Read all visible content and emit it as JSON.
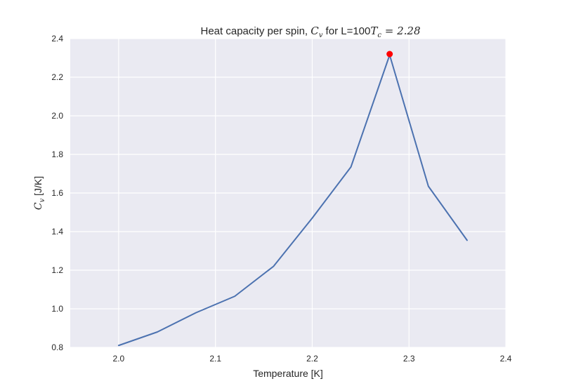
{
  "chart_data": {
    "type": "line",
    "title_parts": {
      "prefix": "Heat capacity per spin, ",
      "cv_symbol": "C",
      "cv_subscript": "v",
      "middle": " for L=100",
      "tc_symbol": "T",
      "tc_subscript": "c",
      "tc_value": " = 2.28"
    },
    "xlabel": "Temperature [K]",
    "ylabel_parts": {
      "symbol": "C",
      "subscript": "v",
      "unit": " [J/K]"
    },
    "xlim": [
      1.95,
      2.4
    ],
    "ylim": [
      0.8,
      2.4
    ],
    "xticks": [
      "2.0",
      "2.1",
      "2.2",
      "2.3",
      "2.4"
    ],
    "yticks": [
      "0.8",
      "1.0",
      "1.2",
      "1.4",
      "1.6",
      "1.8",
      "2.0",
      "2.2",
      "2.4"
    ],
    "grid": true,
    "series": [
      {
        "x": [
          2.0,
          2.04,
          2.08,
          2.12,
          2.16,
          2.2,
          2.24,
          2.28,
          2.32,
          2.36
        ],
        "y": [
          0.81,
          0.88,
          0.98,
          1.065,
          1.22,
          1.47,
          1.735,
          2.315,
          1.635,
          1.355
        ],
        "color": "#4c72b0"
      }
    ],
    "highlight_point": {
      "x": 2.28,
      "y": 2.32,
      "color": "#ff0000"
    },
    "colors": {
      "plot_background": "#eaeaf2",
      "grid": "#ffffff"
    }
  }
}
